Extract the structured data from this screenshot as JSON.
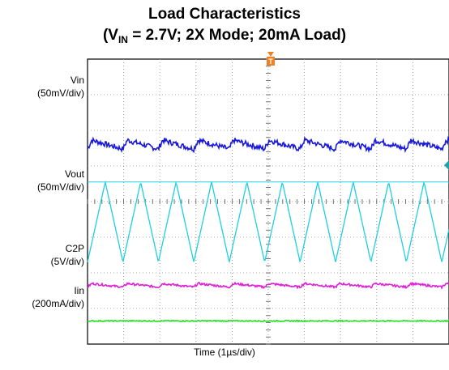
{
  "chart_data": {
    "type": "line",
    "title": "Load Characteristics",
    "subtitle": {
      "prefix": "(V",
      "subscript": "IN",
      "rest": " = 2.7V; 2X Mode; 20mA Load)"
    },
    "xlabel": "Time (1µs/div)",
    "trigger_marker": "T",
    "x_divisions": 10,
    "y_divisions": 8,
    "series": [
      {
        "name": "Vin",
        "scale": "(50mV/div)",
        "color": "#1a1adf",
        "shape": "ripple",
        "period_divisions": 0.98,
        "level_div": 5.6,
        "amplitude_div": 0.25
      },
      {
        "name": "Vout",
        "scale": "(50mV/div)",
        "color": "#1ed0e0",
        "shape": "triangle",
        "period_divisions": 0.98,
        "top_div": 4.55,
        "bottom_div": 2.3
      },
      {
        "name": "C2P",
        "scale": "(5V/div)",
        "color": "#e020d8",
        "shape": "ripple",
        "period_divisions": 0.98,
        "level_div": 1.65,
        "amplitude_div": 0.1
      },
      {
        "name": "Iin",
        "scale": "(200mA/div)",
        "color": "#20e020",
        "shape": "flat",
        "level_div": 0.65,
        "amplitude_div": 0.03
      }
    ]
  }
}
